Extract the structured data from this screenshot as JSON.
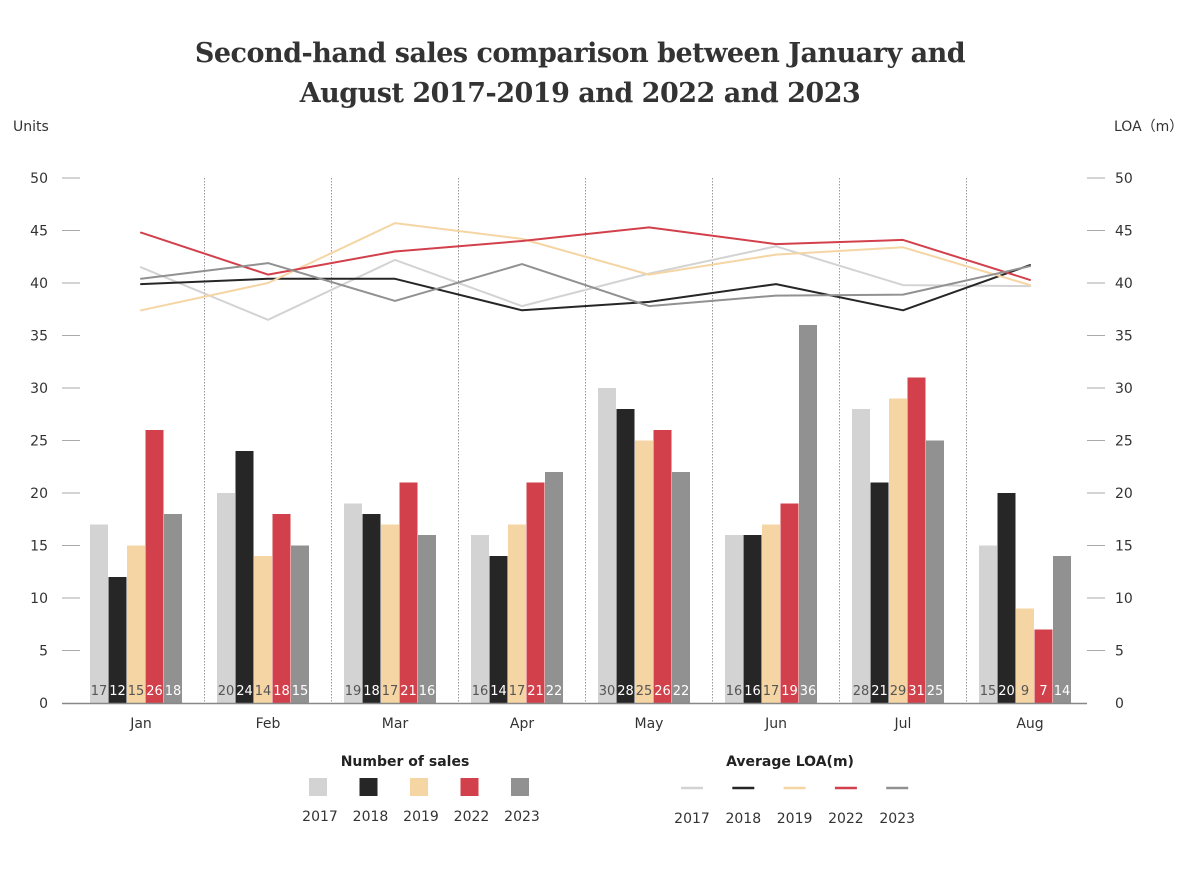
{
  "chart_data": {
    "type": "bar",
    "title_line1": "Second-hand sales comparison between January and",
    "title_line2": "August 2017-2019 and 2022 and 2023",
    "y_left_label": "Units",
    "y_right_label": "LOA（m）",
    "ylim": [
      0,
      50
    ],
    "y_ticks": [
      "0",
      "5",
      "10",
      "15",
      "20",
      "25",
      "30",
      "35",
      "40",
      "45",
      "50"
    ],
    "categories": [
      "Jan",
      "Feb",
      "Mar",
      "Apr",
      "May",
      "Jun",
      "Jul",
      "Aug"
    ],
    "colors": {
      "2017": "#d3d3d3",
      "2018": "#262626",
      "2019": "#f5d5a4",
      "2022": "#d2404b",
      "2023": "#919191"
    },
    "series": [
      {
        "name": "2017",
        "values": [
          17,
          20,
          19,
          16,
          30,
          16,
          28,
          15
        ]
      },
      {
        "name": "2018",
        "values": [
          12,
          24,
          18,
          14,
          28,
          16,
          21,
          20
        ]
      },
      {
        "name": "2019",
        "values": [
          15,
          14,
          17,
          17,
          25,
          17,
          29,
          9
        ]
      },
      {
        "name": "2022",
        "values": [
          26,
          18,
          21,
          21,
          26,
          19,
          31,
          7
        ]
      },
      {
        "name": "2023",
        "values": [
          18,
          15,
          16,
          22,
          22,
          36,
          25,
          14
        ]
      }
    ],
    "line_series": [
      {
        "name": "2017",
        "values": [
          41.5,
          36.5,
          42.2,
          37.8,
          40.9,
          43.5,
          39.8,
          39.7
        ]
      },
      {
        "name": "2018",
        "values": [
          39.9,
          40.4,
          40.4,
          37.4,
          38.2,
          39.9,
          37.4,
          41.7
        ]
      },
      {
        "name": "2019",
        "values": [
          37.4,
          40.0,
          45.7,
          44.2,
          40.8,
          42.7,
          43.4,
          39.8
        ]
      },
      {
        "name": "2022",
        "values": [
          44.8,
          40.8,
          43.0,
          44.0,
          45.3,
          43.7,
          44.1,
          40.3
        ]
      },
      {
        "name": "2023",
        "values": [
          40.4,
          41.9,
          38.3,
          41.8,
          37.8,
          38.8,
          38.9,
          41.6
        ]
      }
    ],
    "legend_bars": {
      "title": "Number of sales",
      "labels": [
        "2017",
        "2018",
        "2019",
        "2022",
        "2023"
      ]
    },
    "legend_lines": {
      "title": "Average LOA(m)",
      "labels": [
        "2017",
        "2018",
        "2019",
        "2022",
        "2023"
      ]
    }
  }
}
